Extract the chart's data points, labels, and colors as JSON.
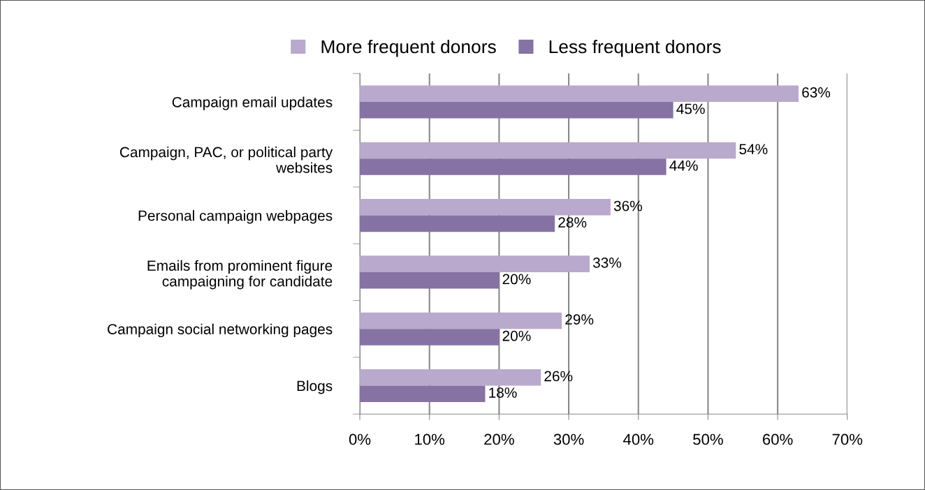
{
  "chart_data": {
    "type": "bar",
    "orientation": "horizontal",
    "categories": [
      "Campaign email updates",
      "Campaign, PAC, or political party\nwebsites",
      "Personal campaign webpages",
      "Emails from prominent figure\ncampaigning for candidate",
      "Campaign social networking pages",
      "Blogs"
    ],
    "series": [
      {
        "name": "More frequent donors",
        "color": "#b9a9cc",
        "values": [
          63,
          54,
          36,
          33,
          29,
          26
        ],
        "value_labels": [
          "63%",
          "54%",
          "36%",
          "33%",
          "29%",
          "26%"
        ]
      },
      {
        "name": "Less frequent donors",
        "color": "#8672a3",
        "values": [
          45,
          44,
          28,
          20,
          20,
          18
        ],
        "value_labels": [
          "45%",
          "44%",
          "28%",
          "20%",
          "20%",
          "18%"
        ]
      }
    ],
    "xlim": [
      0,
      70
    ],
    "xticks": [
      {
        "value": 0,
        "label": "0%"
      },
      {
        "value": 10,
        "label": "10%"
      },
      {
        "value": 20,
        "label": "20%"
      },
      {
        "value": 30,
        "label": "30%"
      },
      {
        "value": 40,
        "label": "40%"
      },
      {
        "value": 50,
        "label": "50%"
      },
      {
        "value": 60,
        "label": "60%"
      },
      {
        "value": 70,
        "label": "70%"
      }
    ],
    "grid": "x",
    "legend": "top"
  }
}
